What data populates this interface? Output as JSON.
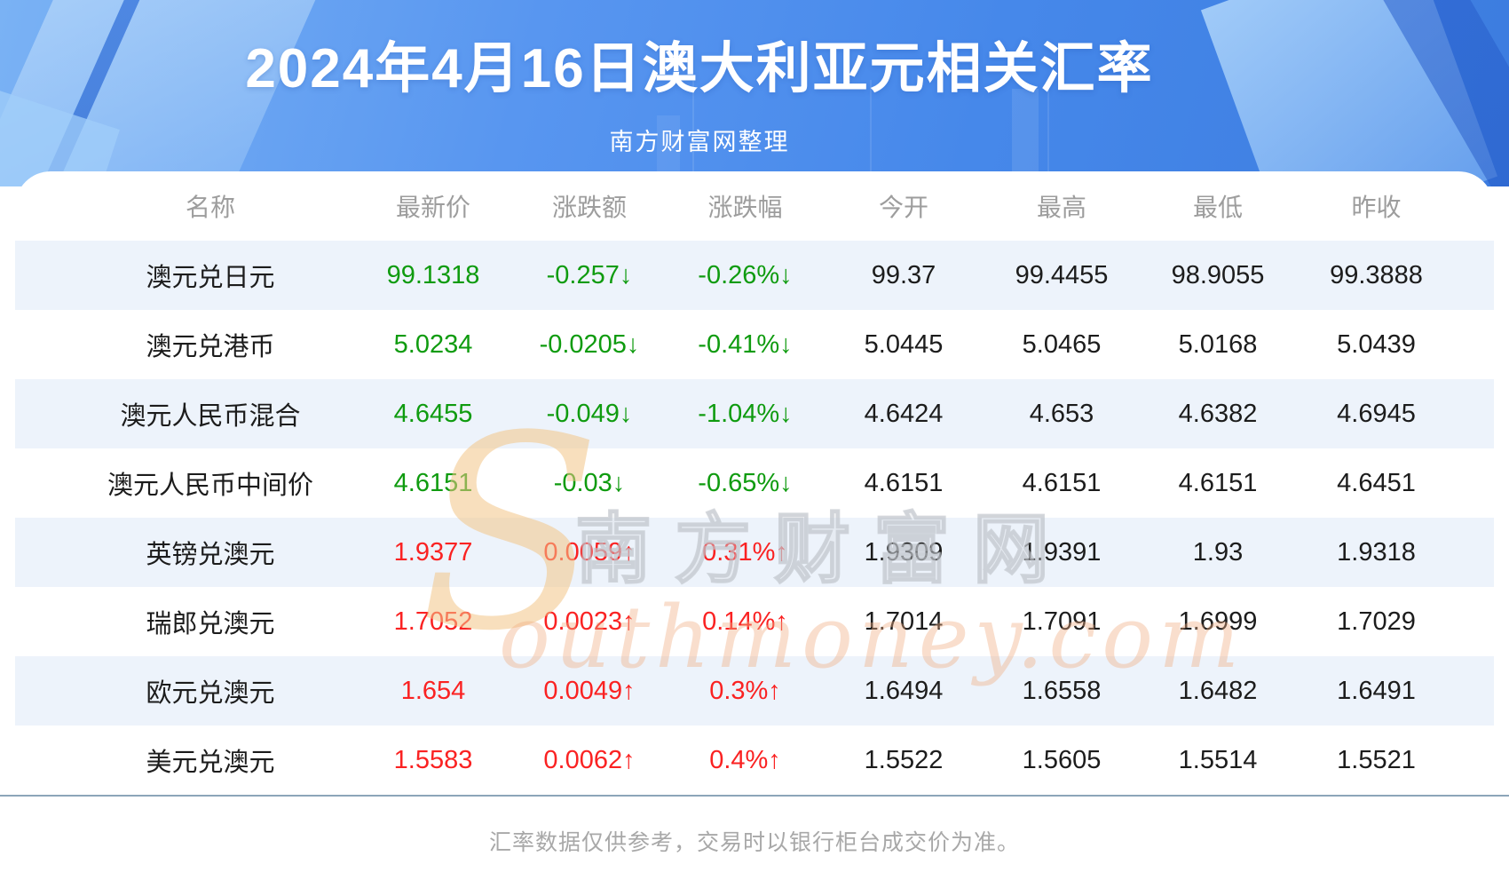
{
  "header": {
    "title": "2024年4月16日澳大利亚元相关汇率",
    "subtitle": "南方财富网整理"
  },
  "table": {
    "columns": [
      "名称",
      "最新价",
      "涨跌额",
      "涨跌幅",
      "今开",
      "最高",
      "最低",
      "昨收"
    ],
    "rows": [
      {
        "name": "澳元兑日元",
        "latest": "99.1318",
        "change": "-0.257↓",
        "change_pct": "-0.26%↓",
        "open": "99.37",
        "high": "99.4455",
        "low": "98.9055",
        "prev_close": "99.3888",
        "trend": "down"
      },
      {
        "name": "澳元兑港币",
        "latest": "5.0234",
        "change": "-0.0205↓",
        "change_pct": "-0.41%↓",
        "open": "5.0445",
        "high": "5.0465",
        "low": "5.0168",
        "prev_close": "5.0439",
        "trend": "down"
      },
      {
        "name": "澳元人民币混合",
        "latest": "4.6455",
        "change": "-0.049↓",
        "change_pct": "-1.04%↓",
        "open": "4.6424",
        "high": "4.653",
        "low": "4.6382",
        "prev_close": "4.6945",
        "trend": "down"
      },
      {
        "name": "澳元人民币中间价",
        "latest": "4.6151",
        "change": "-0.03↓",
        "change_pct": "-0.65%↓",
        "open": "4.6151",
        "high": "4.6151",
        "low": "4.6151",
        "prev_close": "4.6451",
        "trend": "down"
      },
      {
        "name": "英镑兑澳元",
        "latest": "1.9377",
        "change": "0.0059↑",
        "change_pct": "0.31%↑",
        "open": "1.9309",
        "high": "1.9391",
        "low": "1.93",
        "prev_close": "1.9318",
        "trend": "up"
      },
      {
        "name": "瑞郎兑澳元",
        "latest": "1.7052",
        "change": "0.0023↑",
        "change_pct": "0.14%↑",
        "open": "1.7014",
        "high": "1.7091",
        "low": "1.6999",
        "prev_close": "1.7029",
        "trend": "up"
      },
      {
        "name": "欧元兑澳元",
        "latest": "1.654",
        "change": "0.0049↑",
        "change_pct": "0.3%↑",
        "open": "1.6494",
        "high": "1.6558",
        "low": "1.6482",
        "prev_close": "1.6491",
        "trend": "up"
      },
      {
        "name": "美元兑澳元",
        "latest": "1.5583",
        "change": "0.0062↑",
        "change_pct": "0.4%↑",
        "open": "1.5522",
        "high": "1.5605",
        "low": "1.5514",
        "prev_close": "1.5521",
        "trend": "up"
      }
    ]
  },
  "watermark": {
    "initial": "S",
    "cn": "南方财富网",
    "en": "outhmoney.com"
  },
  "footer": {
    "note": "汇率数据仅供参考，交易时以银行柜台成交价为准。"
  },
  "colors": {
    "up_red": "#fa2222",
    "down_green": "#0f9b0f",
    "stripe_blue": "#edf3fb",
    "banner_blue": "#4688ea",
    "header_gray": "#9d9d9d"
  }
}
